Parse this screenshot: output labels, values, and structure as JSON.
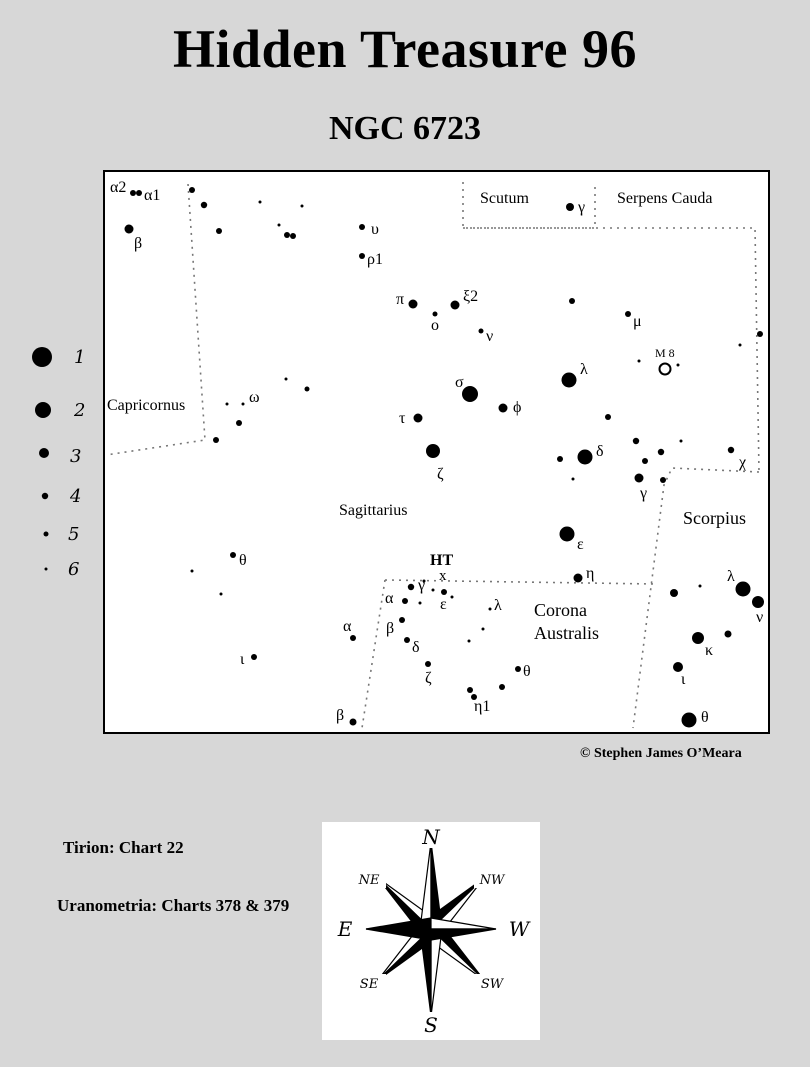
{
  "header": {
    "title": "Hidden Treasure 96",
    "subtitle": "NGC  6723"
  },
  "constellations": {
    "scutum": "Scutum",
    "serpens_cauda": "Serpens Cauda",
    "capricornus": "Capricornus",
    "sagittarius": "Sagittarius",
    "scorpius": "Scorpius",
    "corona_australis_1": "Corona",
    "corona_australis_2": "Australis"
  },
  "stars": {
    "alpha2": "α2",
    "alpha1": "α1",
    "beta_cap": "β",
    "upsilon": "υ",
    "rho1": "ρ1",
    "pi": "π",
    "omicron": "o",
    "xi2": "ξ2",
    "nu_sgr": "ν",
    "sigma": "σ",
    "phi": "ϕ",
    "tau": "τ",
    "zeta_sgr": "ζ",
    "omega": "ω",
    "gamma_sct": "γ",
    "mu": "μ",
    "lambda_sgr": "λ",
    "delta_sgr": "δ",
    "gamma_sgr": "γ",
    "chi": "χ",
    "epsilon_sgr": "ε",
    "eta_sgr": "η",
    "theta_sgr": "θ",
    "iota_sgr": "ι",
    "alpha_sgr": "α",
    "beta_sgr": "β",
    "alpha_cra": "α",
    "gamma_cra": "γ",
    "epsilon_cra": "ε",
    "beta_cra": "β",
    "delta_cra": "δ",
    "zeta_cra": "ζ",
    "lambda_cra": "λ",
    "theta_cra": "θ",
    "eta1_cra": "η1",
    "lambda_sco": "λ",
    "nu_sco": "ν",
    "kappa_sco": "κ",
    "iota_sco": "ι",
    "theta_sco": "θ"
  },
  "objects": {
    "m8": "M 8",
    "ht": "HT",
    "target_marker": "x"
  },
  "legend": [
    "1",
    "2",
    "3",
    "4",
    "5",
    "6"
  ],
  "credit": "© Stephen James O’Meara",
  "references": {
    "tirion": "Tirion: Chart 22",
    "uranometria": "Uranometria: Charts 378 & 379"
  },
  "compass": {
    "n": "N",
    "s": "S",
    "e": "E",
    "w": "W",
    "ne": "NE",
    "nw": "NW",
    "se": "SE",
    "sw": "SW"
  }
}
